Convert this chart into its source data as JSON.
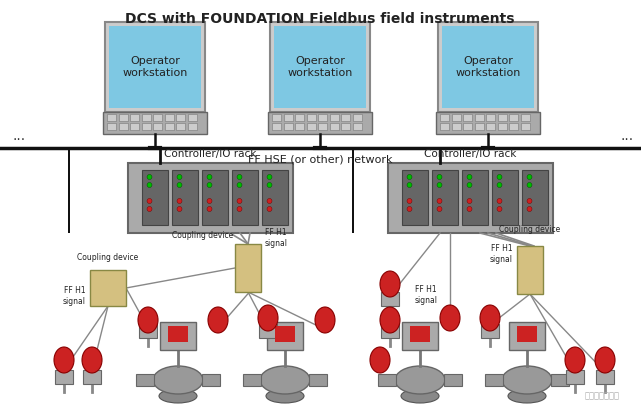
{
  "title": "DCS with FOUNDATION Fieldbus field instruments",
  "bg_color": "#ffffff",
  "monitor_screen_color": "#7ec8e3",
  "monitor_frame_color": "#cccccc",
  "monitor_border_color": "#888888",
  "keyboard_color": "#aaaaaa",
  "rack_outer_color": "#aaaaaa",
  "rack_card_color": "#666666",
  "rack_border_color": "#666666",
  "coupling_color": "#d4c080",
  "coupling_border": "#888844",
  "red_color": "#cc2222",
  "green_color": "#00bb00",
  "valve_body_color": "#999999",
  "valve_actuator_color": "#bbbbbb",
  "wire_color": "#888888",
  "network_color": "#111111",
  "text_color": "#222222",
  "watermark": "工业物联网技术",
  "hse_label": "FF HSE (or other) network",
  "rack_labels": [
    "Controller/IO rack",
    "Controller/IO rack"
  ],
  "ws_labels": [
    "Operator\nworkstation",
    "Operator\nworkstation",
    "Operator\nworkstation"
  ]
}
